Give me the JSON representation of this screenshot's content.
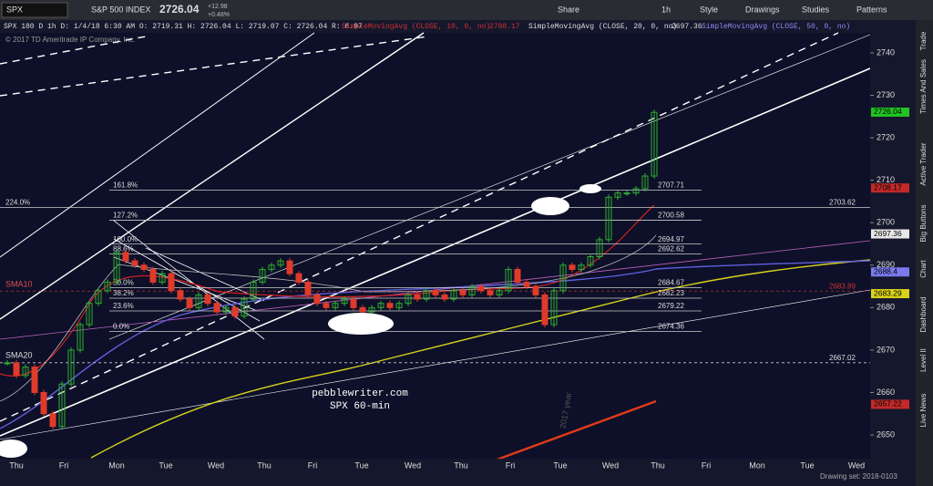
{
  "toolbar": {
    "symbol": "SPX",
    "name": "S&P 500 INDEX",
    "last": "2726.04",
    "change": "+12.98",
    "change_pct": "+0.48%",
    "buttons": [
      "Share",
      "1h",
      "Style",
      "Drawings",
      "Studies",
      "Patterns"
    ]
  },
  "info_line": {
    "main": "SPX 180 D 1h   D: 1/4/18 6:30 AM   O: 2719.31   H: 2726.04   L: 2719.07   C: 2726.04   R: 6.97",
    "sma10": "SimpleMovingAvg (CLOSE, 10, 0, no)",
    "sma10_value": "2708.17",
    "sma20": "SimpleMovingAvg (CLOSE, 20, 0, no)",
    "sma20_value": "2697.36",
    "sma50": "SimpleMovingAvg (CLOSE, 50, 0, no)"
  },
  "copyright": "© 2017 TD Ameritrade IP Company, Inc.",
  "price_axis": [
    2740,
    2730,
    2720,
    2710,
    2700,
    2690,
    2680,
    2670,
    2660,
    2650
  ],
  "price_tags": [
    {
      "value": "2726.04",
      "color": "#22c322"
    },
    {
      "value": "2708.17",
      "color": "#c22a2a"
    },
    {
      "value": "2697.36",
      "color": "#e8e8e8"
    },
    {
      "value": "2688.4",
      "color": "#7a7aee"
    },
    {
      "value": "2683.29",
      "color": "#d8d21a"
    },
    {
      "value": "2657.22",
      "color": "#c22a2a"
    }
  ],
  "fib_levels": [
    {
      "label": "161.8%",
      "price": "2707.71"
    },
    {
      "label": "127.2%",
      "price": "2700.58"
    },
    {
      "label": "100.0%",
      "price": "2694.97"
    },
    {
      "label": "88.6%",
      "price": "2692.62"
    },
    {
      "label": "50.0%",
      "price": "2684.67"
    },
    {
      "label": "38.2%",
      "price": "2682.23"
    },
    {
      "label": "23.6%",
      "price": "2679.22"
    },
    {
      "label": "0.0%",
      "price": "2674.36"
    }
  ],
  "ext_level": {
    "label": "224.0%",
    "price": "2703.62"
  },
  "dashed_levels": [
    "2683.89",
    "2667.02"
  ],
  "labels": {
    "sma10": "SMA10",
    "sma20": "SMA20",
    "site": "pebblewriter.com",
    "subtitle": "SPX 60-min",
    "year": "2017 year"
  },
  "closes": [
    2667,
    2664,
    2666,
    2660,
    2655,
    2652,
    2662,
    2670,
    2676,
    2681,
    2684,
    2686,
    2693,
    2691,
    2690,
    2689,
    2686,
    2688,
    2684,
    2682,
    2680,
    2683,
    2681,
    2679,
    2680,
    2678,
    2682,
    2686,
    2689,
    2690,
    2691,
    2688,
    2686,
    2683,
    2681,
    2680,
    2681,
    2682,
    2680,
    2679,
    2680,
    2681,
    2680,
    2681,
    2683,
    2682,
    2684,
    2683,
    2682,
    2684,
    2683,
    2685,
    2684,
    2683,
    2684,
    2689,
    2686,
    2685,
    2683,
    2676,
    2684,
    2690,
    2689,
    2690,
    2692,
    2696,
    2706,
    2707,
    2707,
    2708,
    2711,
    2726
  ],
  "days": [
    "Thu",
    "Fri",
    "Mon",
    "Tue",
    "Wed",
    "Thu",
    "Fri",
    "Tue",
    "Wed",
    "Thu",
    "Fri",
    "Tue",
    "Wed",
    "Thu",
    "Fri",
    "Mon",
    "Tue",
    "Wed"
  ],
  "drawing_set": "Drawing set: 2018-0103",
  "sidebar": [
    "Trade",
    "Times And Sales",
    "Active Trader",
    "Big Buttons",
    "Chart",
    "Dashboard",
    "Level II",
    "Live News"
  ]
}
